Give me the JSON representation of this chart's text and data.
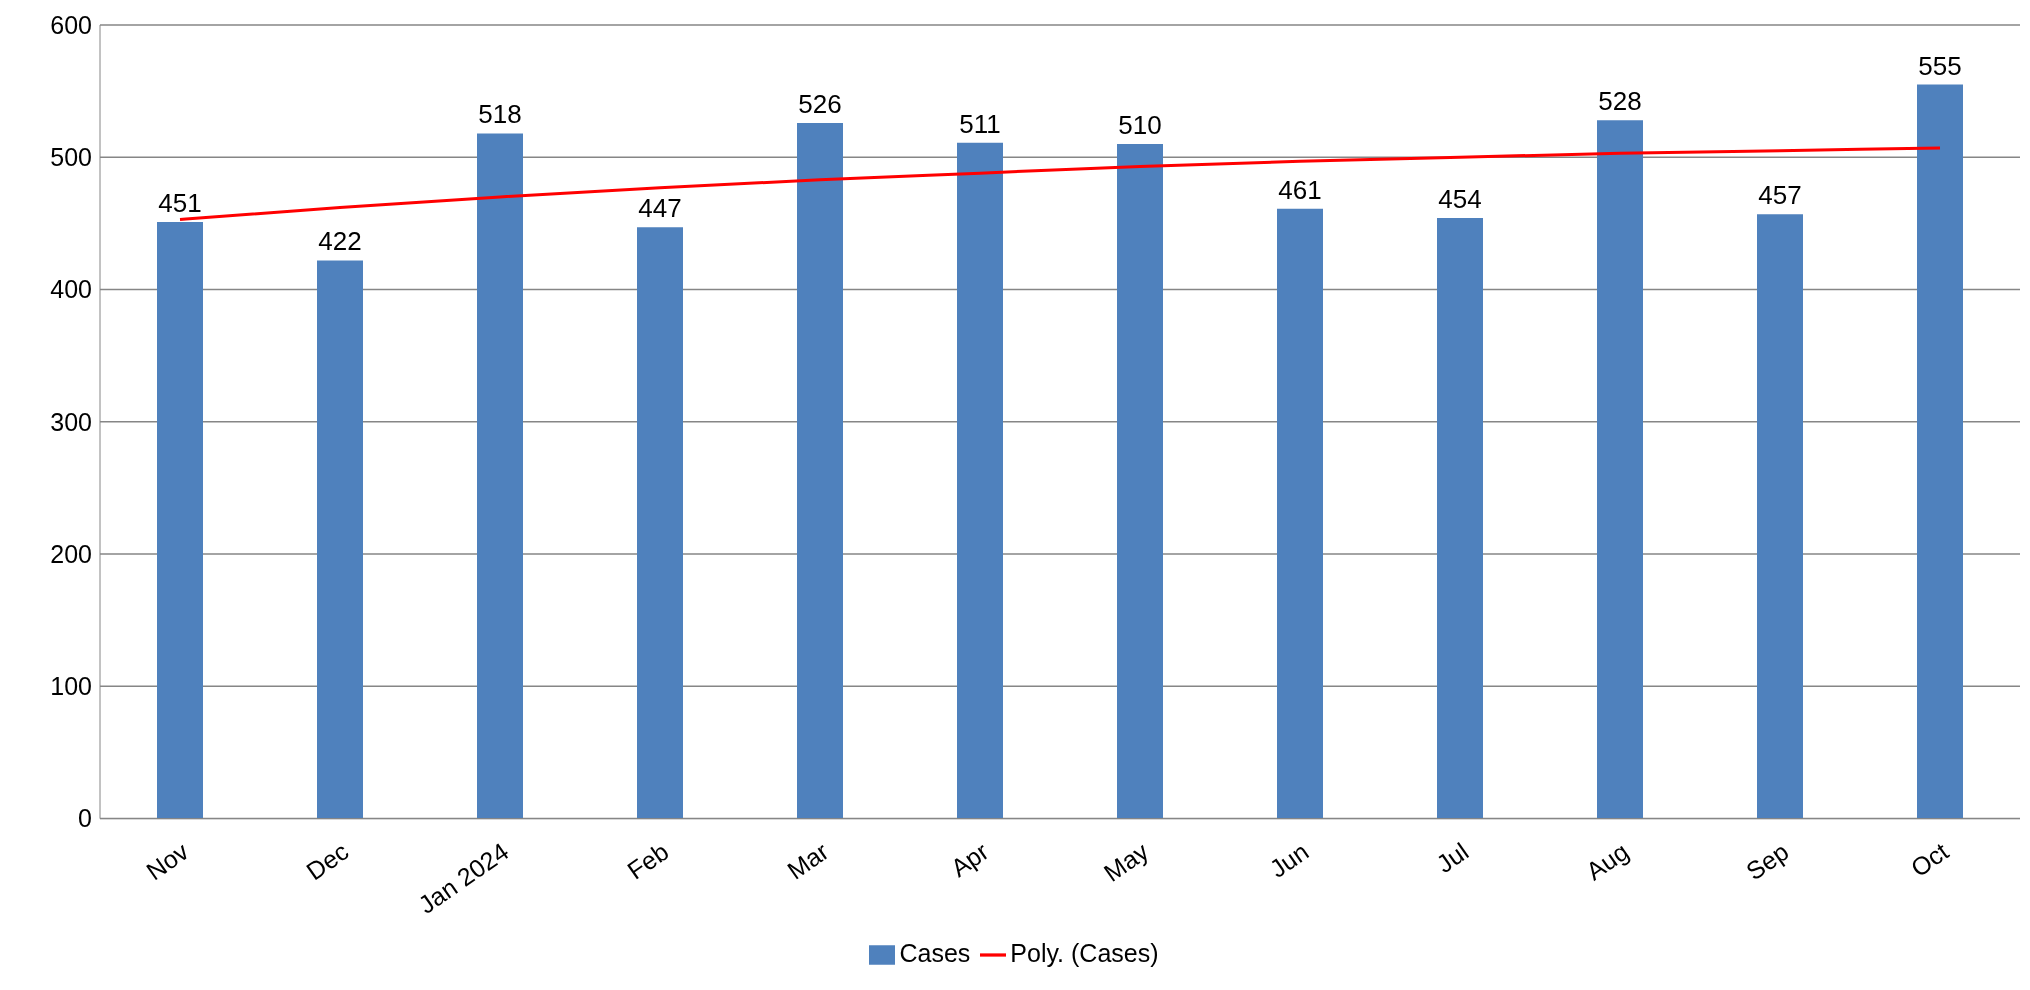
{
  "chart_data": {
    "type": "bar",
    "categories": [
      "Nov",
      "Dec",
      "Jan  2024",
      "Feb",
      "Mar",
      "Apr",
      "May",
      "Jun",
      "Jul",
      "Aug",
      "Sep",
      "Oct"
    ],
    "series": [
      {
        "name": "Cases",
        "color": "#4f81bd",
        "values": [
          451,
          422,
          518,
          447,
          526,
          511,
          510,
          461,
          454,
          528,
          457,
          555
        ],
        "value_labels": [
          "451",
          "422",
          "518",
          "447",
          "526",
          "511",
          "510",
          "461",
          "454",
          "528",
          "457",
          "555"
        ]
      },
      {
        "name": "Poly. (Cases)",
        "type": "line",
        "color": "#ff0000",
        "values": [
          453,
          462,
          470,
          477,
          483,
          488,
          493,
          497,
          500,
          503,
          505,
          507
        ]
      }
    ],
    "ylim": [
      0,
      600
    ],
    "yticks": [
      0,
      100,
      200,
      300,
      400,
      500,
      600
    ],
    "grid": "y",
    "legend": "bottom",
    "marker": "none",
    "line_style": "solid"
  }
}
